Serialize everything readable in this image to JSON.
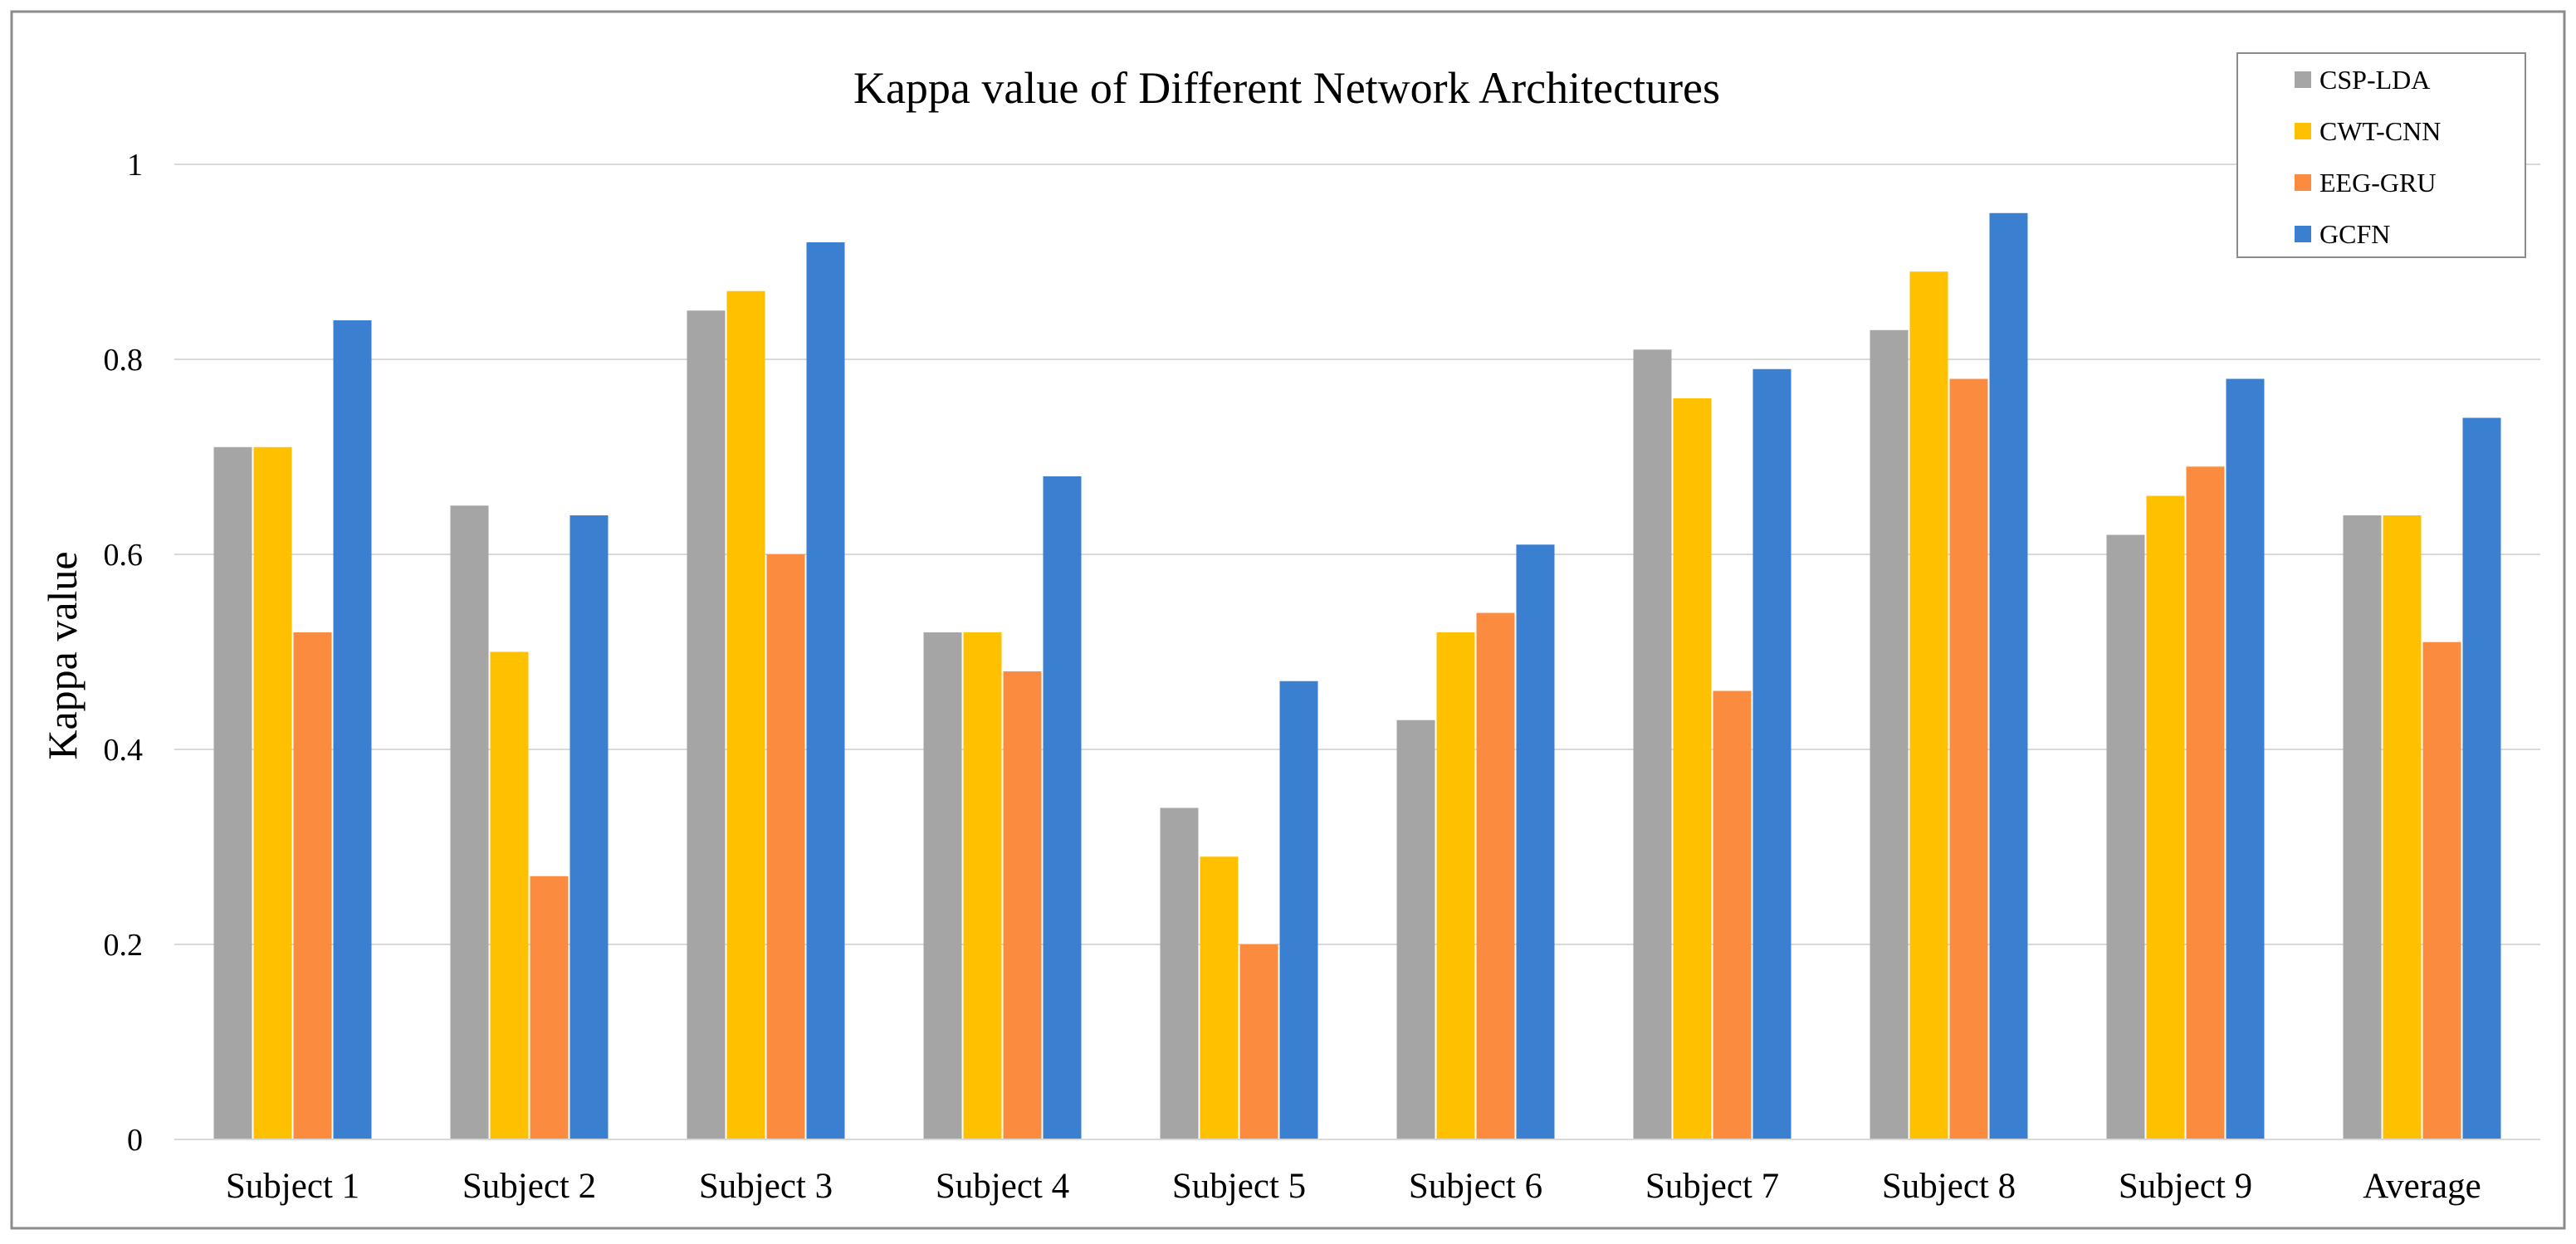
{
  "chart_data": {
    "type": "bar",
    "title": "Kappa value of Different Network Architectures",
    "xlabel": "",
    "ylabel": "Kappa value",
    "ylim": [
      0,
      1
    ],
    "yticks": [
      "0",
      "0.2",
      "0.4",
      "0.6",
      "0.8",
      "1"
    ],
    "grid": true,
    "legend_position": "top-right",
    "categories": [
      "Subject 1",
      "Subject 2",
      "Subject 3",
      "Subject 4",
      "Subject 5",
      "Subject 6",
      "Subject 7",
      "Subject 8",
      "Subject 9",
      "Average"
    ],
    "series": [
      {
        "name": "CSP-LDA",
        "color": "#a5a5a5",
        "values": [
          0.71,
          0.65,
          0.85,
          0.52,
          0.34,
          0.43,
          0.81,
          0.83,
          0.62,
          0.64
        ]
      },
      {
        "name": "CWT-CNN",
        "color": "#ffc000",
        "values": [
          0.71,
          0.5,
          0.87,
          0.52,
          0.29,
          0.52,
          0.76,
          0.89,
          0.66,
          0.64
        ]
      },
      {
        "name": "EEG-GRU",
        "color": "#fb8c3f",
        "values": [
          0.52,
          0.27,
          0.6,
          0.48,
          0.2,
          0.54,
          0.46,
          0.78,
          0.69,
          0.51
        ]
      },
      {
        "name": "GCFN",
        "color": "#3a7fd0",
        "values": [
          0.84,
          0.64,
          0.92,
          0.68,
          0.47,
          0.61,
          0.79,
          0.95,
          0.78,
          0.74
        ]
      }
    ]
  }
}
